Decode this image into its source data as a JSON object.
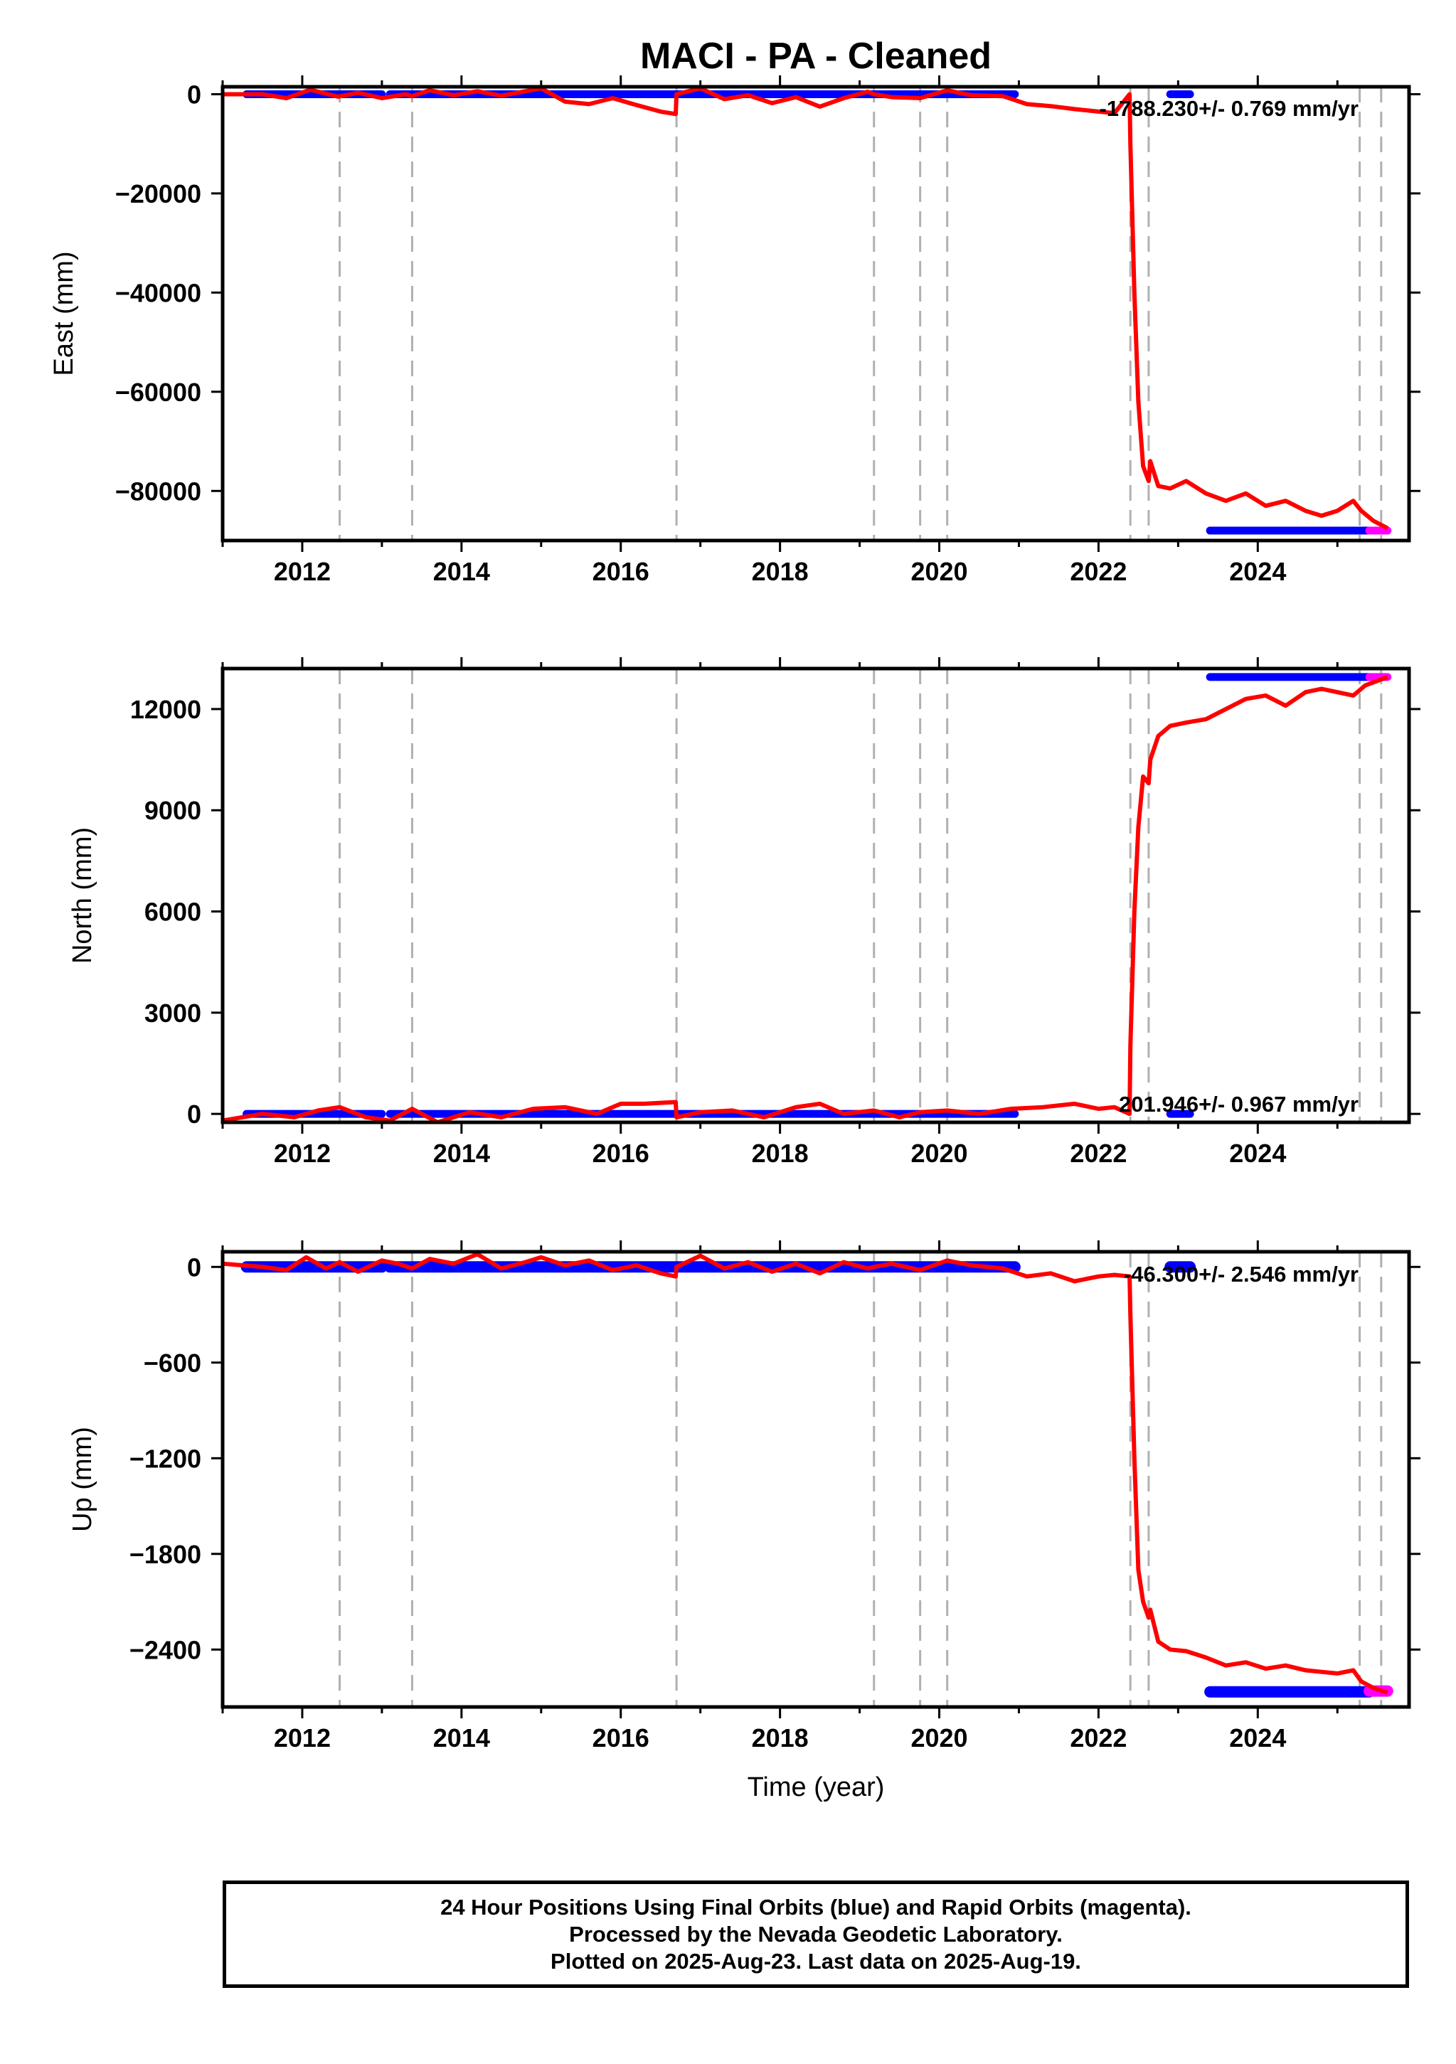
{
  "chart_data": {
    "type": "scatter",
    "title": "MACI  - PA - Cleaned",
    "xlabel": "Time (year)",
    "xlim": [
      2011.0,
      2025.9
    ],
    "x_ticks": [
      "2012",
      "2014",
      "2016",
      "2018",
      "2020",
      "2022",
      "2024"
    ],
    "x_tick_values": [
      2012,
      2014,
      2016,
      2018,
      2020,
      2022,
      2024
    ],
    "event_lines": [
      2012.47,
      2013.38,
      2016.7,
      2019.18,
      2019.76,
      2020.1,
      2022.4,
      2022.63,
      2025.28,
      2025.55
    ],
    "colors": {
      "final": "#0000ff",
      "rapid": "#ff00ff",
      "model": "#ff0000",
      "event": "#b0b0b0"
    },
    "panels": [
      {
        "id": "east",
        "ylabel": "East (mm)",
        "ylim": [
          -90000,
          1500
        ],
        "y_ticks": [
          "0",
          "−20000",
          "−40000",
          "−60000",
          "−80000"
        ],
        "y_tick_values": [
          0,
          -20000,
          -40000,
          -60000,
          -80000
        ],
        "rate_text": "-1788.230+/- 0.769 mm/yr",
        "final_segments": [
          {
            "x": [
              2011.3,
              2013.0
            ],
            "y": 0
          },
          {
            "x": [
              2013.1,
              2020.95
            ],
            "y": 0
          },
          {
            "x": [
              2022.9,
              2023.15
            ],
            "y": 0
          },
          {
            "x": [
              2023.4,
              2025.4
            ],
            "y": -88000
          }
        ],
        "rapid_segments": [
          {
            "x": [
              2025.4,
              2025.63
            ],
            "y": -88000
          }
        ],
        "model": {
          "x": [
            2011.0,
            2011.5,
            2011.8,
            2012.1,
            2012.45,
            2012.7,
            2013.0,
            2013.3,
            2013.38,
            2013.6,
            2013.9,
            2014.2,
            2014.5,
            2014.8,
            2015.0,
            2015.3,
            2015.6,
            2015.9,
            2016.2,
            2016.5,
            2016.69,
            2016.7,
            2017.0,
            2017.3,
            2017.6,
            2017.9,
            2018.2,
            2018.5,
            2018.8,
            2019.1,
            2019.18,
            2019.4,
            2019.76,
            2020.1,
            2020.4,
            2020.8,
            2021.1,
            2021.4,
            2021.7,
            2022.0,
            2022.2,
            2022.39,
            2022.4,
            2022.45,
            2022.5,
            2022.56,
            2022.63,
            2022.65,
            2022.75,
            2022.9,
            2023.1,
            2023.35,
            2023.6,
            2023.85,
            2024.1,
            2024.35,
            2024.6,
            2024.8,
            2025.0,
            2025.2,
            2025.3,
            2025.45,
            2025.63
          ],
          "y": [
            0,
            0,
            -800,
            900,
            -500,
            300,
            -800,
            0,
            -400,
            800,
            -200,
            600,
            -300,
            600,
            1200,
            -1500,
            -2000,
            -800,
            -2200,
            -3500,
            -4000,
            0,
            1200,
            -1000,
            -200,
            -1800,
            -600,
            -2500,
            -800,
            500,
            0,
            -600,
            -800,
            800,
            -200,
            -400,
            -2000,
            -2400,
            -3000,
            -3500,
            -3800,
            0,
            -10000,
            -40000,
            -62000,
            -75000,
            -78000,
            -74000,
            -79000,
            -79500,
            -78000,
            -80500,
            -82000,
            -80500,
            -83000,
            -82000,
            -84000,
            -85000,
            -84000,
            -82000,
            -84000,
            -86000,
            -87500
          ]
        }
      },
      {
        "id": "north",
        "ylabel": "North (mm)",
        "ylim": [
          -250,
          13200
        ],
        "y_ticks": [
          "0",
          "3000",
          "6000",
          "9000",
          "12000"
        ],
        "y_tick_values": [
          0,
          3000,
          6000,
          9000,
          12000
        ],
        "rate_text": "201.946+/- 0.967 mm/yr",
        "final_segments": [
          {
            "x": [
              2011.3,
              2013.0
            ],
            "y": 0
          },
          {
            "x": [
              2013.1,
              2020.95
            ],
            "y": 0
          },
          {
            "x": [
              2022.9,
              2023.15
            ],
            "y": 0
          },
          {
            "x": [
              2023.4,
              2025.4
            ],
            "y": 12950
          }
        ],
        "rapid_segments": [
          {
            "x": [
              2025.4,
              2025.63
            ],
            "y": 12950
          }
        ],
        "model": {
          "x": [
            2011.0,
            2011.5,
            2011.9,
            2012.2,
            2012.47,
            2012.8,
            2013.1,
            2013.38,
            2013.7,
            2014.1,
            2014.5,
            2014.9,
            2015.3,
            2015.7,
            2016.0,
            2016.3,
            2016.69,
            2016.7,
            2017.0,
            2017.4,
            2017.8,
            2018.2,
            2018.5,
            2018.8,
            2019.18,
            2019.5,
            2019.76,
            2020.1,
            2020.5,
            2020.9,
            2021.3,
            2021.7,
            2022.0,
            2022.2,
            2022.39,
            2022.4,
            2022.45,
            2022.5,
            2022.56,
            2022.63,
            2022.65,
            2022.75,
            2022.9,
            2023.1,
            2023.35,
            2023.6,
            2023.85,
            2024.1,
            2024.35,
            2024.6,
            2024.8,
            2025.0,
            2025.2,
            2025.35,
            2025.63
          ],
          "y": [
            -200,
            0,
            -100,
            100,
            200,
            -100,
            -200,
            150,
            -250,
            50,
            -100,
            150,
            200,
            0,
            300,
            300,
            350,
            -100,
            50,
            100,
            -100,
            200,
            300,
            0,
            100,
            -100,
            50,
            100,
            0,
            150,
            200,
            300,
            150,
            200,
            0,
            2000,
            6000,
            8500,
            10000,
            9800,
            10500,
            11200,
            11500,
            11600,
            11700,
            12000,
            12300,
            12400,
            12100,
            12500,
            12600,
            12500,
            12400,
            12700,
            12950
          ]
        }
      },
      {
        "id": "up",
        "ylabel": "Up (mm)",
        "ylim": [
          -2760,
          95
        ],
        "y_ticks": [
          "0",
          "−600",
          "−1200",
          "−1800",
          "−2400"
        ],
        "y_tick_values": [
          0,
          -600,
          -1200,
          -1800,
          -2400
        ],
        "rate_text": "-46.300+/- 2.546 mm/yr",
        "final_segments": [
          {
            "x": [
              2011.3,
              2013.0
            ],
            "y": 0
          },
          {
            "x": [
              2013.1,
              2020.95
            ],
            "y": 0
          },
          {
            "x": [
              2022.9,
              2023.15
            ],
            "y": 0
          },
          {
            "x": [
              2023.4,
              2025.4
            ],
            "y": -2665
          }
        ],
        "rapid_segments": [
          {
            "x": [
              2025.4,
              2025.63
            ],
            "y": -2660
          }
        ],
        "model": {
          "x": [
            2011.0,
            2011.5,
            2011.8,
            2012.05,
            2012.3,
            2012.47,
            2012.7,
            2013.0,
            2013.2,
            2013.38,
            2013.6,
            2013.9,
            2014.2,
            2014.5,
            2014.8,
            2015.0,
            2015.3,
            2015.6,
            2015.9,
            2016.2,
            2016.5,
            2016.69,
            2016.7,
            2017.0,
            2017.3,
            2017.6,
            2017.9,
            2018.2,
            2018.5,
            2018.8,
            2019.1,
            2019.18,
            2019.4,
            2019.76,
            2020.1,
            2020.4,
            2020.8,
            2021.1,
            2021.4,
            2021.7,
            2022.0,
            2022.2,
            2022.39,
            2022.4,
            2022.45,
            2022.5,
            2022.56,
            2022.63,
            2022.65,
            2022.75,
            2022.9,
            2023.1,
            2023.35,
            2023.6,
            2023.85,
            2024.1,
            2024.35,
            2024.6,
            2024.8,
            2025.0,
            2025.2,
            2025.3,
            2025.45,
            2025.63
          ],
          "y": [
            20,
            0,
            -20,
            60,
            -10,
            30,
            -30,
            40,
            20,
            -10,
            50,
            20,
            80,
            -10,
            30,
            60,
            10,
            40,
            -20,
            10,
            -40,
            -60,
            0,
            70,
            -10,
            30,
            -30,
            20,
            -40,
            30,
            -10,
            0,
            20,
            -20,
            40,
            10,
            -10,
            -60,
            -40,
            -90,
            -60,
            -50,
            -60,
            -300,
            -1200,
            -1900,
            -2100,
            -2200,
            -2150,
            -2350,
            -2400,
            -2410,
            -2450,
            -2500,
            -2480,
            -2520,
            -2500,
            -2530,
            -2540,
            -2550,
            -2530,
            -2600,
            -2640,
            -2670
          ]
        }
      }
    ]
  },
  "footer": {
    "line1": "24 Hour Positions Using Final Orbits (blue) and Rapid Orbits (magenta).",
    "line2": "Processed by the Nevada Geodetic Laboratory.",
    "line3": "Plotted on 2025-Aug-23. Last data on 2025-Aug-19."
  }
}
